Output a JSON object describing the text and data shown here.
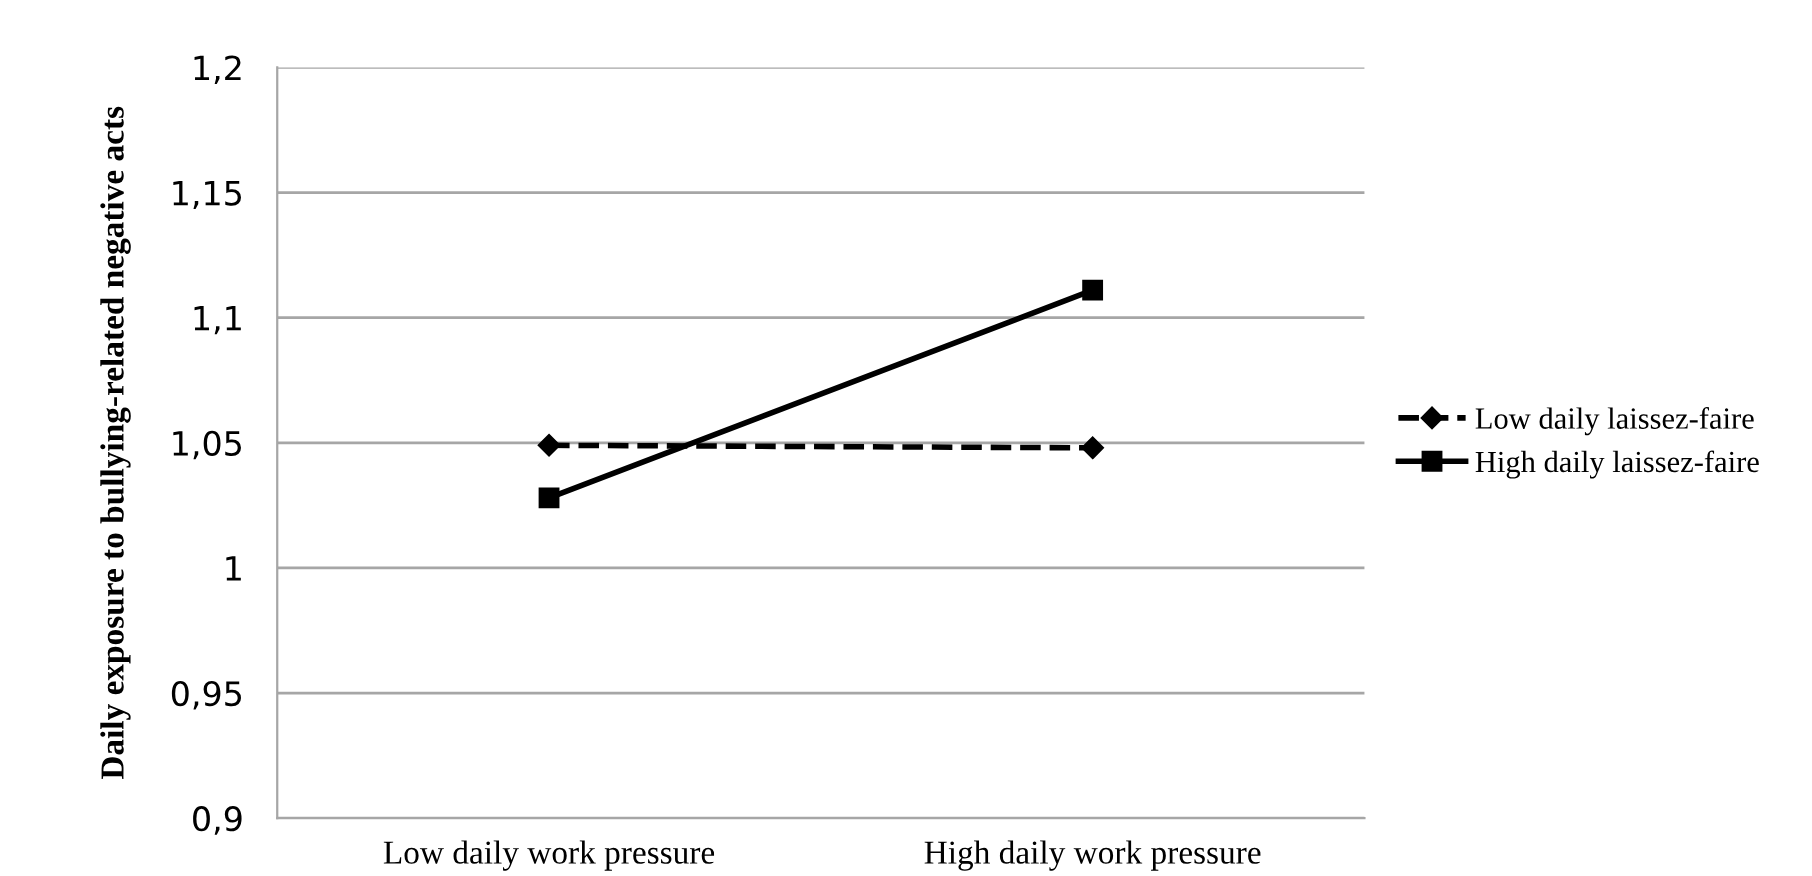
{
  "chart_data": {
    "type": "line",
    "ylabel": "Daily exposure to bullying-related negative acts",
    "categories": [
      "Low daily work pressure",
      "High daily work pressure"
    ],
    "series": [
      {
        "name": "Low daily laissez-faire",
        "color": "#000000",
        "values": [
          1.049,
          1.048
        ],
        "marker": "diamond",
        "line_style": "dashed"
      },
      {
        "name": "High daily laissez-faire",
        "color": "#000000",
        "values": [
          1.028,
          1.111
        ],
        "marker": "square",
        "line_style": "solid"
      }
    ],
    "ylim": [
      0.9,
      1.2
    ],
    "yticks": [
      {
        "value": 0.9,
        "label": "0,9"
      },
      {
        "value": 0.95,
        "label": "0,95"
      },
      {
        "value": 1.0,
        "label": "1"
      },
      {
        "value": 1.05,
        "label": "1,05"
      },
      {
        "value": 1.1,
        "label": "1,1"
      },
      {
        "value": 1.15,
        "label": "1,15"
      },
      {
        "value": 1.2,
        "label": "1,2"
      }
    ],
    "grid": "y",
    "legend": "right"
  }
}
